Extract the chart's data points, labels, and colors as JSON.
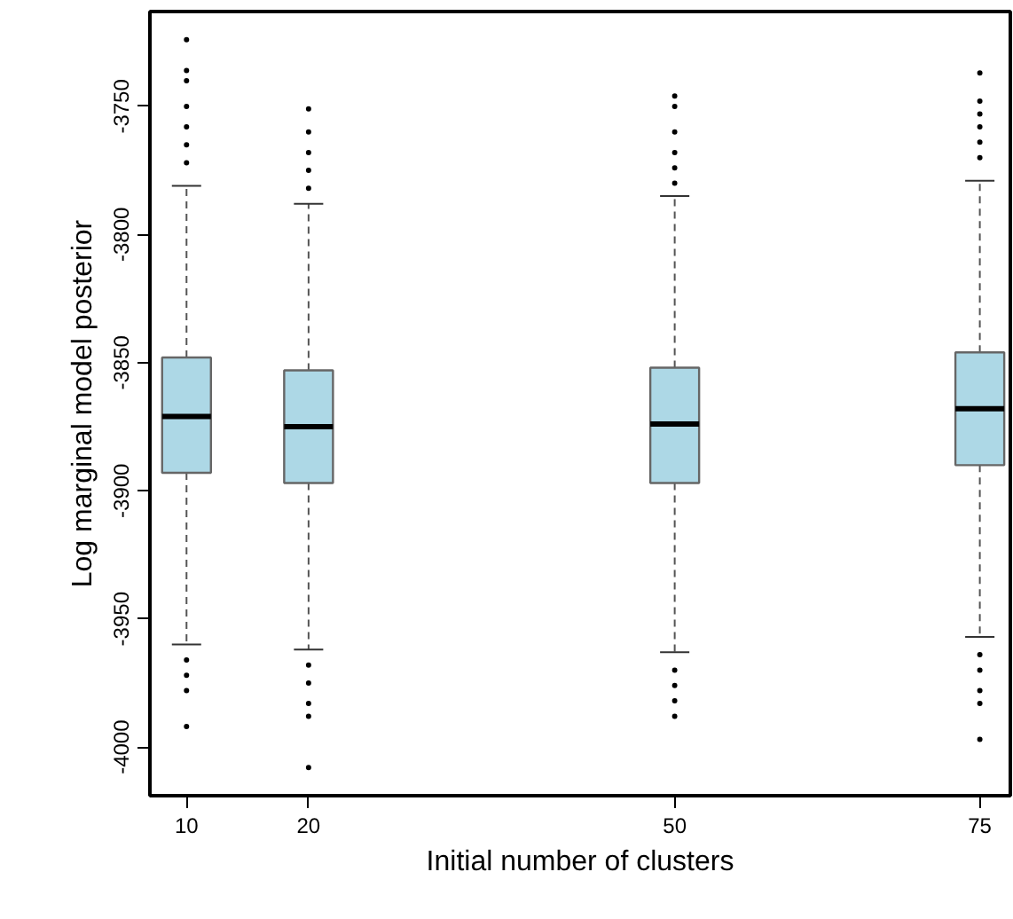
{
  "chart_data": {
    "type": "box",
    "xlabel": "Initial number of clusters",
    "ylabel": "Log marginal model posterior",
    "x": [
      10,
      20,
      50,
      75
    ],
    "boxes": [
      {
        "low": -3960,
        "q1": -3893,
        "median": -3871,
        "q3": -3848,
        "high": -3781,
        "outliers": [
          -3724,
          -3736,
          -3740,
          -3750,
          -3758,
          -3765,
          -3772,
          -3966,
          -3972,
          -3978,
          -3992
        ]
      },
      {
        "low": -3962,
        "q1": -3897,
        "median": -3875,
        "q3": -3853,
        "high": -3788,
        "outliers": [
          -3751,
          -3760,
          -3768,
          -3775,
          -3782,
          -3968,
          -3975,
          -3983,
          -3988,
          -4008
        ]
      },
      {
        "low": -3963,
        "q1": -3897,
        "median": -3874,
        "q3": -3852,
        "high": -3785,
        "outliers": [
          -3746,
          -3750,
          -3760,
          -3768,
          -3774,
          -3780,
          -3970,
          -3976,
          -3982,
          -3988
        ]
      },
      {
        "low": -3957,
        "q1": -3890,
        "median": -3868,
        "q3": -3846,
        "high": -3779,
        "outliers": [
          -3737,
          -3748,
          -3753,
          -3758,
          -3764,
          -3770,
          -3964,
          -3970,
          -3978,
          -3983,
          -3997
        ]
      }
    ],
    "color": "#add8e6",
    "xlim": [
      7,
      77.5
    ],
    "xticks": [
      10,
      20,
      50,
      75
    ],
    "ylim": [
      -4019,
      -3713
    ],
    "yticks": [
      -3750,
      -3800,
      -3850,
      -3900,
      -3950,
      -4000
    ],
    "grid": false
  }
}
